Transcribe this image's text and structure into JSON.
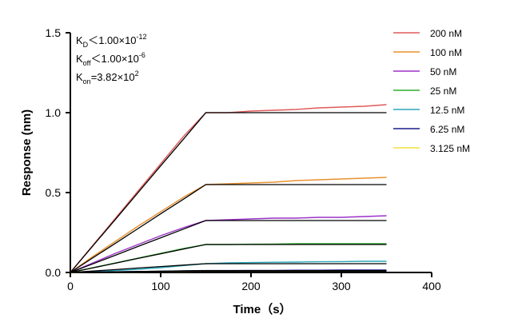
{
  "chart_data": {
    "type": "line",
    "xlabel": "Time（s）",
    "ylabel": "Response (nm)",
    "annotations": [
      {
        "symbol": "K",
        "sub": "D",
        "relation": "＜",
        "mantissa": "1.00×10",
        "exp": "-12"
      },
      {
        "symbol": "K",
        "sub": "off",
        "relation": "＜",
        "mantissa": "1.00×10",
        "exp": "-6"
      },
      {
        "symbol": "K",
        "sub": "on",
        "relation": "=",
        "mantissa": "3.82×10",
        "exp": "2"
      }
    ],
    "x": [
      0,
      25,
      50,
      75,
      100,
      125,
      150,
      175,
      200,
      225,
      250,
      275,
      300,
      325,
      350
    ],
    "xlim": [
      0,
      400
    ],
    "xticks": [
      0,
      100,
      200,
      300,
      400
    ],
    "ylim": [
      0,
      1.5
    ],
    "yticks": [
      {
        "value": 0,
        "label": "0.0"
      },
      0.5,
      {
        "value": 1,
        "label": "1.0"
      },
      1.5
    ],
    "grid": false,
    "legend": "right",
    "fit_color": "#000000",
    "series": [
      {
        "name": "200 nM",
        "color": "#e05a5a",
        "values": [
          0,
          0.17,
          0.34,
          0.51,
          0.68,
          0.85,
          1.0,
          1.0,
          1.01,
          1.015,
          1.02,
          1.03,
          1.035,
          1.04,
          1.05
        ],
        "fit": [
          0,
          0.167,
          0.333,
          0.5,
          0.667,
          0.833,
          1,
          1,
          1,
          1,
          1,
          1,
          1,
          1,
          1
        ]
      },
      {
        "name": "100 nM",
        "color": "#e8912e",
        "values": [
          0,
          0.1,
          0.195,
          0.29,
          0.38,
          0.47,
          0.55,
          0.555,
          0.56,
          0.565,
          0.575,
          0.58,
          0.585,
          0.59,
          0.595
        ],
        "fit": [
          0,
          0.092,
          0.183,
          0.275,
          0.367,
          0.458,
          0.55,
          0.55,
          0.55,
          0.55,
          0.55,
          0.55,
          0.55,
          0.55,
          0.55
        ]
      },
      {
        "name": "50 nM",
        "color": "#9b30c8",
        "values": [
          0,
          0.06,
          0.12,
          0.175,
          0.23,
          0.28,
          0.325,
          0.33,
          0.335,
          0.34,
          0.34,
          0.345,
          0.345,
          0.35,
          0.355
        ],
        "fit": [
          0,
          0.054,
          0.108,
          0.163,
          0.217,
          0.271,
          0.325,
          0.325,
          0.325,
          0.325,
          0.325,
          0.325,
          0.325,
          0.325,
          0.325
        ]
      },
      {
        "name": "25 nM",
        "color": "#2fae2f",
        "values": [
          0,
          0.03,
          0.06,
          0.09,
          0.12,
          0.15,
          0.175,
          0.175,
          0.177,
          0.178,
          0.18,
          0.18,
          0.18,
          0.18,
          0.18
        ],
        "fit": [
          0,
          0.029,
          0.058,
          0.088,
          0.117,
          0.146,
          0.175,
          0.175,
          0.175,
          0.175,
          0.175,
          0.175,
          0.175,
          0.175,
          0.175
        ]
      },
      {
        "name": "12.5 nM",
        "color": "#2aa8b8",
        "values": [
          0,
          0.005,
          0.012,
          0.02,
          0.03,
          0.043,
          0.055,
          0.06,
          0.062,
          0.064,
          0.065,
          0.067,
          0.068,
          0.07,
          0.07
        ],
        "fit": [
          0,
          0.009,
          0.018,
          0.028,
          0.037,
          0.046,
          0.055,
          0.055,
          0.055,
          0.055,
          0.055,
          0.055,
          0.055,
          0.055,
          0.055
        ]
      },
      {
        "name": "6.25 nM",
        "color": "#1a1a8c",
        "values": [
          0,
          0.002,
          0.004,
          0.006,
          0.008,
          0.01,
          0.012,
          0.012,
          0.013,
          0.013,
          0.014,
          0.014,
          0.015,
          0.015,
          0.015
        ],
        "fit": [
          0,
          0.002,
          0.004,
          0.006,
          0.008,
          0.01,
          0.012,
          0.012,
          0.012,
          0.012,
          0.012,
          0.012,
          0.012,
          0.012,
          0.012
        ]
      },
      {
        "name": "3.125 nM",
        "color": "#f0e040",
        "values": [
          0,
          0.001,
          0.002,
          0.003,
          0.004,
          0.005,
          0.006,
          0.006,
          0.006,
          0.007,
          0.007,
          0.007,
          0.008,
          0.008,
          0.008
        ],
        "fit": [
          0,
          0.001,
          0.002,
          0.003,
          0.004,
          0.005,
          0.006,
          0.006,
          0.006,
          0.006,
          0.006,
          0.006,
          0.006,
          0.006,
          0.006
        ]
      }
    ]
  }
}
